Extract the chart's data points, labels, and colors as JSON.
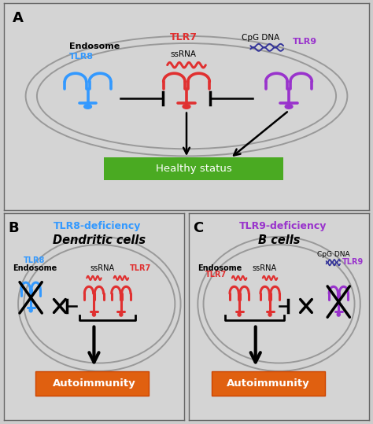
{
  "bg_color": "#cccccc",
  "panel_bg_A": "#d4d4d4",
  "panel_bg_BC": "#d4d4d4",
  "tlr7_color": "#e03030",
  "tlr8_color": "#3399ff",
  "tlr9_color": "#9933cc",
  "ssrna_color": "#e03030",
  "cpgdna_color": "#333399",
  "healthy_box_color": "#4aaa22",
  "healthy_text": "Healthy status",
  "autoimmunity_box_color": "#e06010",
  "autoimmunity_text": "Autoimmunity",
  "endosome_label": "Endosome",
  "tlr8_deficiency": "TLR8-deficiency",
  "tlr9_deficiency": "TLR9-deficiency",
  "dendritic_cells": "Dendritic cells",
  "b_cells": "B cells",
  "ellipse_color": "#aaaaaa"
}
